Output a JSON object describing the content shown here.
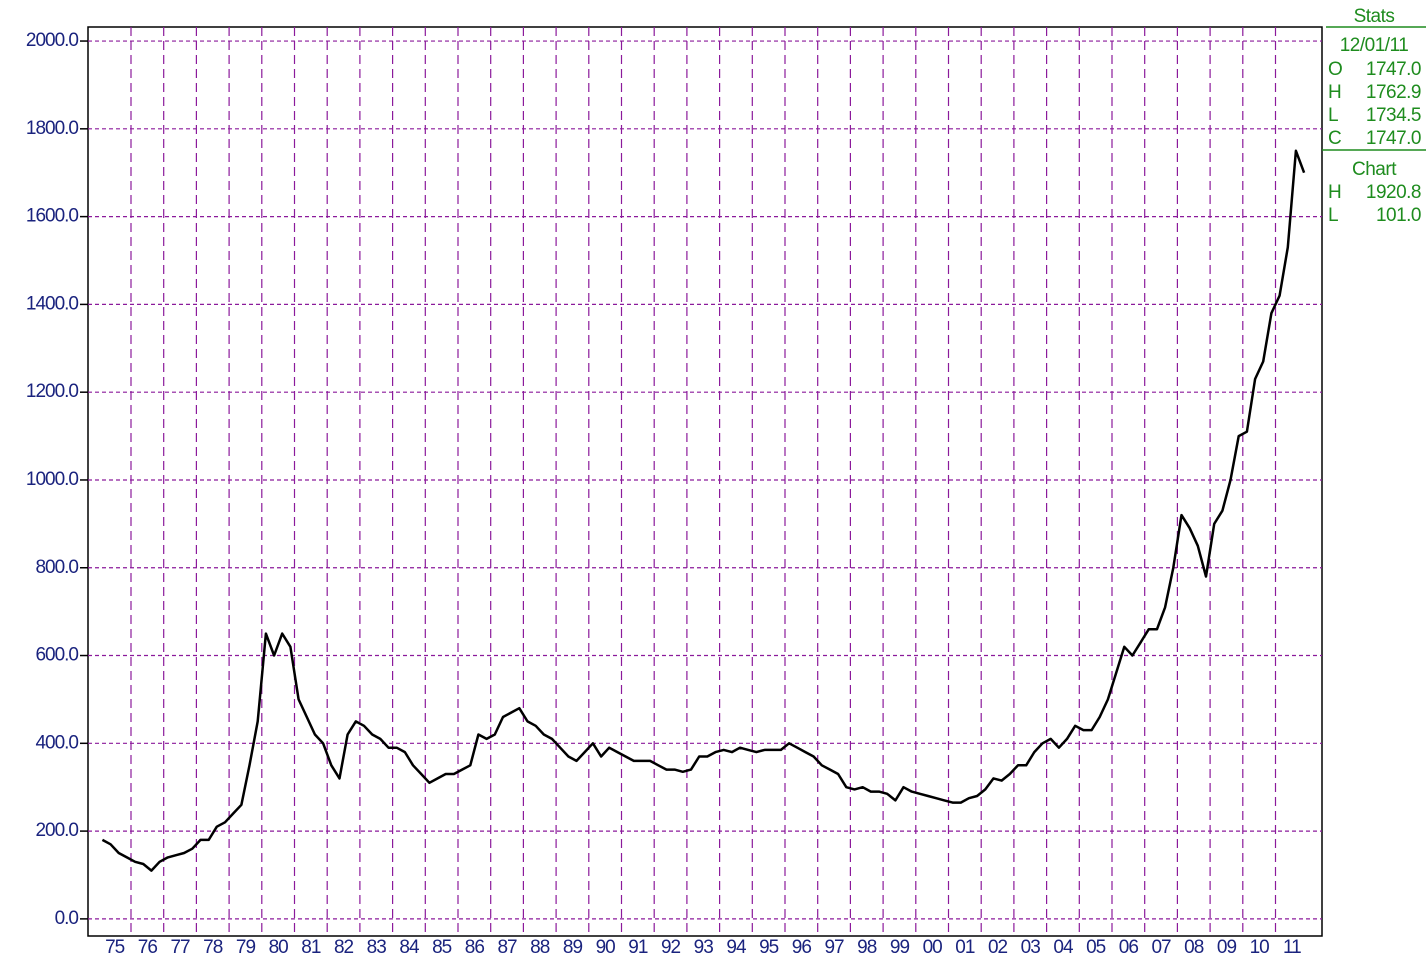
{
  "chart_data": {
    "type": "line",
    "categories": [
      "75",
      null,
      null,
      null,
      "76",
      null,
      null,
      null,
      "77",
      null,
      null,
      null,
      "78",
      null,
      null,
      null,
      "79",
      null,
      null,
      null,
      "80",
      null,
      null,
      null,
      "81",
      null,
      null,
      null,
      "82",
      null,
      null,
      null,
      "83",
      null,
      null,
      null,
      "84",
      null,
      null,
      null,
      "85",
      null,
      null,
      null,
      "86",
      null,
      null,
      null,
      "87",
      null,
      null,
      null,
      "88",
      null,
      null,
      null,
      "89",
      null,
      null,
      null,
      "90",
      null,
      null,
      null,
      "91",
      null,
      null,
      null,
      "92",
      null,
      null,
      null,
      "93",
      null,
      null,
      null,
      "94",
      null,
      null,
      null,
      "95",
      null,
      null,
      null,
      "96",
      null,
      null,
      null,
      "97",
      null,
      null,
      null,
      "98",
      null,
      null,
      null,
      "99",
      null,
      null,
      null,
      "00",
      null,
      null,
      null,
      "01",
      null,
      null,
      null,
      "02",
      null,
      null,
      null,
      "03",
      null,
      null,
      null,
      "04",
      null,
      null,
      null,
      "05",
      null,
      null,
      null,
      "06",
      null,
      null,
      null,
      "07",
      null,
      null,
      null,
      "08",
      null,
      null,
      null,
      "09",
      null,
      null,
      null,
      "10",
      null,
      null,
      null,
      "11",
      null,
      null,
      null
    ],
    "series": [
      {
        "color": "#000000",
        "values": [
          180,
          170,
          150,
          140,
          130,
          125,
          110,
          130,
          140,
          145,
          150,
          160,
          180,
          180,
          210,
          220,
          240,
          260,
          350,
          450,
          650,
          600,
          650,
          620,
          500,
          460,
          420,
          400,
          350,
          320,
          420,
          450,
          440,
          420,
          410,
          390,
          390,
          380,
          350,
          330,
          310,
          320,
          330,
          330,
          340,
          350,
          420,
          410,
          420,
          460,
          470,
          480,
          450,
          440,
          420,
          410,
          390,
          370,
          360,
          380,
          400,
          370,
          390,
          380,
          370,
          360,
          360,
          360,
          350,
          340,
          340,
          335,
          340,
          370,
          370,
          380,
          385,
          380,
          390,
          385,
          380,
          385,
          385,
          385,
          400,
          390,
          380,
          370,
          350,
          340,
          330,
          300,
          295,
          300,
          290,
          290,
          285,
          270,
          300,
          290,
          285,
          280,
          275,
          270,
          265,
          265,
          275,
          280,
          295,
          320,
          315,
          330,
          350,
          350,
          380,
          400,
          410,
          390,
          410,
          440,
          430,
          430,
          460,
          500,
          560,
          620,
          600,
          630,
          660,
          660,
          710,
          800,
          920,
          890,
          850,
          780,
          900,
          930,
          1000,
          1100,
          1110,
          1230,
          1270,
          1380,
          1420,
          1530,
          1750,
          1700
        ]
      }
    ],
    "ylim": [
      -39,
      2032
    ],
    "yticks": [
      {
        "value": 0,
        "label": "0.0"
      },
      {
        "value": 200,
        "label": "200.0"
      },
      {
        "value": 400,
        "label": "400.0"
      },
      {
        "value": 600,
        "label": "600.0"
      },
      {
        "value": 800,
        "label": "800.0"
      },
      {
        "value": 1000,
        "label": "1000.0"
      },
      {
        "value": 1200,
        "label": "1200.0"
      },
      {
        "value": 1400,
        "label": "1400.0"
      },
      {
        "value": 1600,
        "label": "1600.0"
      },
      {
        "value": 1800,
        "label": "1800.0"
      },
      {
        "value": 2000,
        "label": "2000.0"
      }
    ],
    "grid": true,
    "grid_color": "#8b1a9b"
  },
  "stats": {
    "title": "Stats",
    "date": "12/01/11",
    "ohlc": [
      {
        "label": "O",
        "value": "1747.0"
      },
      {
        "label": "H",
        "value": "1762.9"
      },
      {
        "label": "L",
        "value": "1734.5"
      },
      {
        "label": "C",
        "value": "1747.0"
      }
    ],
    "chart_title": "Chart",
    "range": [
      {
        "label": "H",
        "value": "1920.8"
      },
      {
        "label": "L",
        "value": "101.0"
      }
    ]
  }
}
